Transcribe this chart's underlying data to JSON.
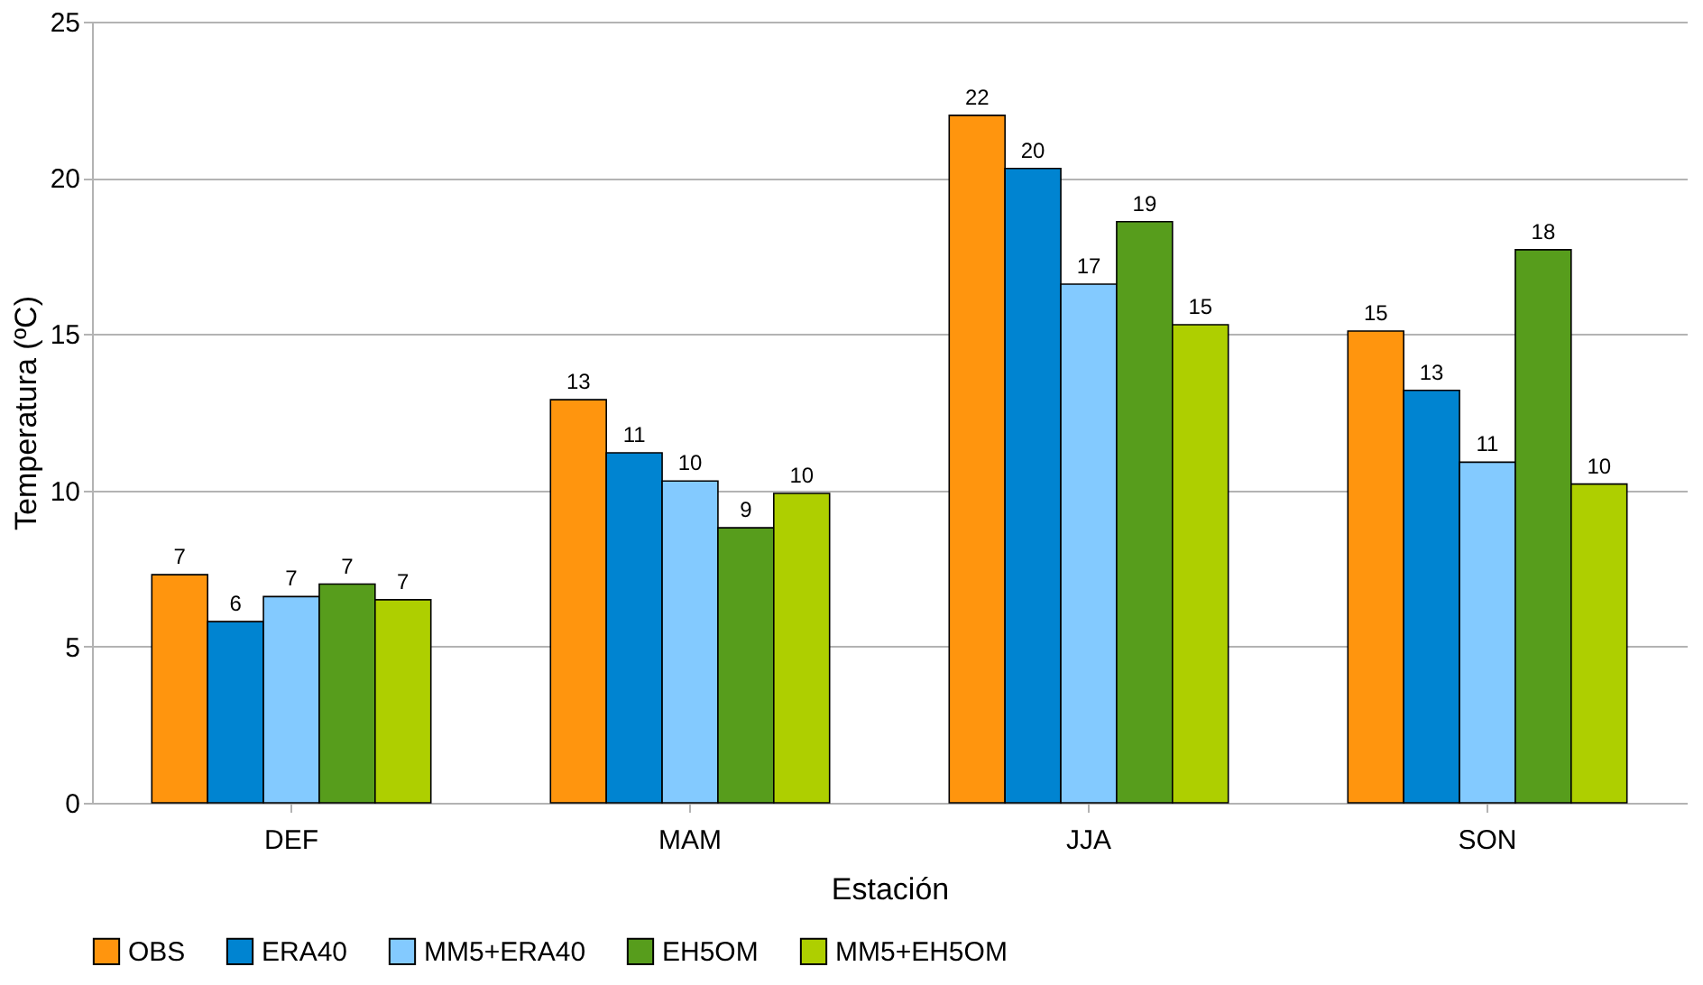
{
  "chart_data": {
    "type": "bar",
    "xlabel": "Estación",
    "ylabel": "Temperatura (ºC)",
    "categories": [
      "DEF",
      "MAM",
      "JJA",
      "SON"
    ],
    "series": [
      {
        "name": "OBS",
        "color": "#ff950e",
        "values": [
          7.3,
          12.9,
          22.0,
          15.1
        ],
        "value_labels": [
          "7",
          "13",
          "22",
          "15"
        ]
      },
      {
        "name": "ERA40",
        "color": "#0084d1",
        "values": [
          5.8,
          11.2,
          20.3,
          13.2
        ],
        "value_labels": [
          "6",
          "11",
          "20",
          "13"
        ]
      },
      {
        "name": "MM5+ERA40",
        "color": "#83caff",
        "values": [
          6.6,
          10.3,
          16.6,
          10.9
        ],
        "value_labels": [
          "7",
          "10",
          "17",
          "11"
        ]
      },
      {
        "name": "EH5OM",
        "color": "#579d1c",
        "values": [
          7.0,
          8.8,
          18.6,
          17.7
        ],
        "value_labels": [
          "7",
          "9",
          "19",
          "18"
        ]
      },
      {
        "name": "MM5+EH5OM",
        "color": "#aecf00",
        "values": [
          6.5,
          9.9,
          15.3,
          10.2
        ],
        "value_labels": [
          "7",
          "10",
          "15",
          "10"
        ]
      }
    ],
    "ylim": [
      0,
      25
    ],
    "yticks": [
      0,
      5,
      10,
      15,
      20,
      25
    ],
    "grid": "y",
    "legend": "bottom"
  }
}
